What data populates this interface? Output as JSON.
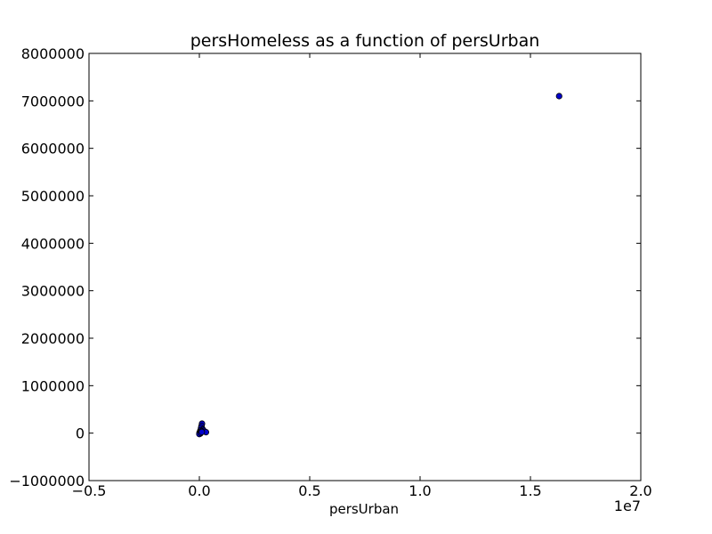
{
  "chart_data": {
    "type": "scatter",
    "title": "persHomeless as a function of persUrban",
    "xlabel": "persUrban",
    "ylabel": "",
    "x_offset_label": "1e7",
    "xlim": [
      -0.5,
      2.0
    ],
    "ylim": [
      -1000000,
      8000000
    ],
    "xticks": [
      -0.5,
      0.0,
      0.5,
      1.0,
      1.5,
      2.0
    ],
    "xtick_labels": [
      "−0.5",
      "0.0",
      "0.5",
      "1.0",
      "1.5",
      "2.0"
    ],
    "yticks": [
      -1000000,
      0,
      1000000,
      2000000,
      3000000,
      4000000,
      5000000,
      6000000,
      7000000,
      8000000
    ],
    "ytick_labels": [
      "−1000000",
      "0",
      "1000000",
      "2000000",
      "3000000",
      "4000000",
      "5000000",
      "6000000",
      "7000000",
      "8000000"
    ],
    "grid": false,
    "marker_color": "#0000cc",
    "points": [
      {
        "x": 1.63,
        "y": 7100000
      },
      {
        "x": 0.012,
        "y": 200000
      },
      {
        "x": 0.01,
        "y": 150000
      },
      {
        "x": 0.008,
        "y": 110000
      },
      {
        "x": 0.015,
        "y": 80000
      },
      {
        "x": 0.005,
        "y": 60000
      },
      {
        "x": 0.02,
        "y": 50000
      },
      {
        "x": 0.003,
        "y": 30000
      },
      {
        "x": 0.03,
        "y": 20000
      },
      {
        "x": 0.001,
        "y": 10000
      },
      {
        "x": 0.002,
        "y": 0
      },
      {
        "x": 0.004,
        "y": -10000
      },
      {
        "x": 0.0,
        "y": -20000
      },
      {
        "x": 0.006,
        "y": 5000
      },
      {
        "x": 0.009,
        "y": 40000
      },
      {
        "x": 0.011,
        "y": 25000
      }
    ]
  }
}
